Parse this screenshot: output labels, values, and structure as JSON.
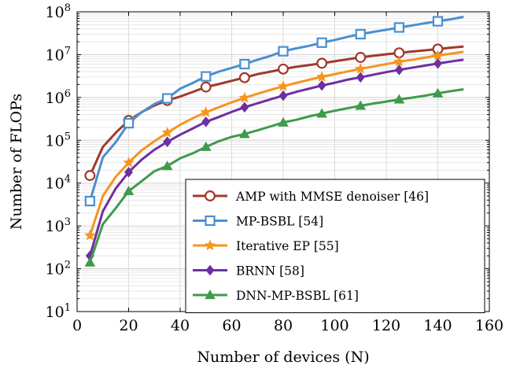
{
  "chart_data": {
    "type": "line",
    "title": "",
    "xlabel": "Number of devices (N)",
    "ylabel": "Number of FLOPs",
    "xlim": [
      0,
      160
    ],
    "ylim": [
      10,
      100000000
    ],
    "yscale": "log",
    "grid": true,
    "legend_position": "bottom-right",
    "x_ticks": [
      0,
      20,
      40,
      60,
      80,
      100,
      120,
      140,
      160
    ],
    "y_tick_exponents": [
      1,
      2,
      3,
      4,
      5,
      6,
      7,
      8
    ],
    "x": [
      5,
      10,
      15,
      20,
      25,
      30,
      35,
      40,
      45,
      50,
      55,
      60,
      65,
      70,
      75,
      80,
      85,
      90,
      95,
      100,
      105,
      110,
      115,
      120,
      125,
      130,
      135,
      140,
      145,
      150
    ],
    "marker_x": [
      5,
      20,
      35,
      50,
      65,
      80,
      95,
      110,
      125,
      140
    ],
    "series": [
      {
        "name": "AMP with MMSE denoiser [46]",
        "color": "#a03a2c",
        "marker": "circle",
        "values": [
          15000,
          70000,
          150000,
          290000,
          450000,
          650000,
          850000,
          1050000,
          1350000,
          1750000,
          2050000,
          2450000,
          2900000,
          3500000,
          4000000,
          4600000,
          5200000,
          5700000,
          6300000,
          7000000,
          7800000,
          8600000,
          9400000,
          10200000,
          11000000,
          11800000,
          12600000,
          13500000,
          14500000,
          15500000
        ]
      },
      {
        "name": "MP-BSBL [54]",
        "color": "#4a8fd0",
        "marker": "square",
        "values": [
          3800,
          40000,
          90000,
          250000,
          450000,
          700000,
          950000,
          1600000,
          2200000,
          3100000,
          4000000,
          4900000,
          6000000,
          7600000,
          9300000,
          12000000,
          14000000,
          16000000,
          19000000,
          22000000,
          26000000,
          30000000,
          34000000,
          38000000,
          43000000,
          48000000,
          54000000,
          60000000,
          67000000,
          76000000
        ]
      },
      {
        "name": "Iterative EP [55]",
        "color": "#f5951e",
        "marker": "star",
        "values": [
          600,
          5000,
          14000,
          30000,
          58000,
          95000,
          150000,
          230000,
          330000,
          450000,
          590000,
          770000,
          980000,
          1220000,
          1500000,
          1820000,
          2180000,
          2580000,
          3020000,
          3500000,
          4050000,
          4650000,
          5300000,
          6000000,
          6800000,
          7600000,
          8500000,
          9500000,
          10500000,
          11600000
        ]
      },
      {
        "name": "BRNN [58]",
        "color": "#6e2fa0",
        "marker": "diamond",
        "values": [
          200,
          2200,
          7500,
          18000,
          35000,
          60000,
          92000,
          135000,
          190000,
          270000,
          350000,
          460000,
          590000,
          730000,
          900000,
          1100000,
          1350000,
          1600000,
          1900000,
          2200000,
          2600000,
          2950000,
          3400000,
          3900000,
          4400000,
          4950000,
          5550000,
          6200000,
          6900000,
          7600000
        ]
      },
      {
        "name": "DNN-MP-BSBL [61]",
        "color": "#3f9a4c",
        "marker": "triangle",
        "values": [
          140,
          1100,
          2600,
          6500,
          11000,
          19000,
          25000,
          38000,
          50000,
          70000,
          95000,
          120000,
          140000,
          170000,
          210000,
          260000,
          300000,
          360000,
          420000,
          490000,
          560000,
          640000,
          720000,
          800000,
          900000,
          990000,
          1100000,
          1250000,
          1400000,
          1550000
        ]
      }
    ]
  }
}
